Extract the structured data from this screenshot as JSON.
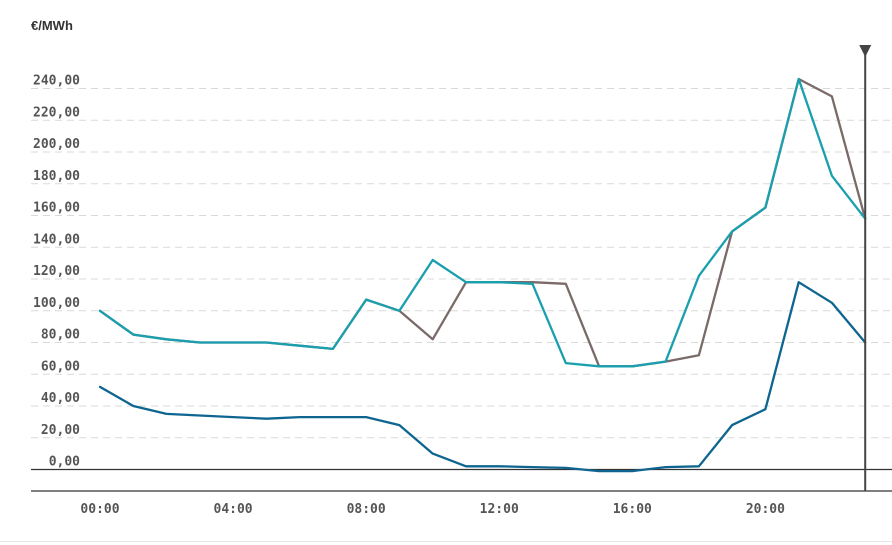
{
  "unit_label": "€/MWh",
  "colors": {
    "series_a": "#7a6a68",
    "series_b": "#1a9fae",
    "series_c": "#0d6590",
    "grid": "#d9d9d9",
    "axis": "#333333",
    "marker": "#444444"
  },
  "chart_data": {
    "type": "line",
    "x": [
      "00:00",
      "01:00",
      "02:00",
      "03:00",
      "04:00",
      "05:00",
      "06:00",
      "07:00",
      "08:00",
      "09:00",
      "10:00",
      "11:00",
      "12:00",
      "13:00",
      "14:00",
      "15:00",
      "16:00",
      "17:00",
      "18:00",
      "19:00",
      "20:00",
      "21:00",
      "22:00",
      "23:00"
    ],
    "x_ticks": [
      "00:00",
      "04:00",
      "08:00",
      "12:00",
      "16:00",
      "20:00"
    ],
    "y_ticks": [
      "0,00",
      "20,00",
      "40,00",
      "60,00",
      "80,00",
      "100,00",
      "120,00",
      "140,00",
      "160,00",
      "180,00",
      "200,00",
      "220,00",
      "240,00"
    ],
    "ylim": [
      -14,
      254
    ],
    "grid": true,
    "marker_hour": "23:00",
    "series": [
      {
        "key": "series_a",
        "values": [
          100,
          85,
          82,
          80,
          80,
          80,
          78,
          76,
          107,
          100,
          82,
          118,
          118,
          118,
          117,
          65,
          65,
          68,
          72,
          150,
          165,
          246,
          235,
          158
        ]
      },
      {
        "key": "series_b",
        "values": [
          100,
          85,
          82,
          80,
          80,
          80,
          78,
          76,
          107,
          100,
          132,
          118,
          118,
          117,
          67,
          65,
          65,
          68,
          122,
          150,
          165,
          246,
          185,
          158
        ]
      },
      {
        "key": "series_c",
        "values": [
          52,
          40,
          35,
          34,
          33,
          32,
          33,
          33,
          33,
          28,
          10,
          2,
          2,
          1.5,
          1,
          -1,
          -1,
          1.5,
          2,
          28,
          38,
          118,
          105,
          80
        ]
      }
    ]
  }
}
